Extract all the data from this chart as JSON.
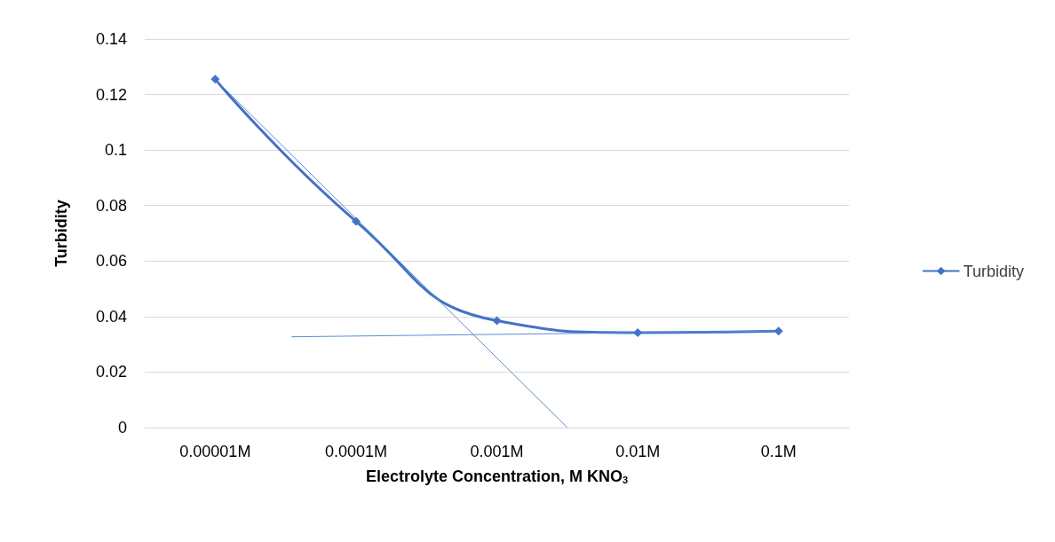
{
  "chart_data": {
    "type": "line",
    "xlabel": "Electrolyte Concentration, M KNO$_{3}$",
    "ylabel": "Turbidity",
    "log": "x",
    "x": [
      1e-05,
      0.0001,
      0.001,
      0.01,
      0.1
    ],
    "xlim": [
      3.16e-06,
      0.316
    ],
    "xticks": [
      {
        "value": 1e-05,
        "label": "0.00001M"
      },
      {
        "value": 0.0001,
        "label": "0.0001M"
      },
      {
        "value": 0.001,
        "label": "0.001M"
      },
      {
        "value": 0.01,
        "label": "0.01M"
      },
      {
        "value": 0.1,
        "label": "0.1M"
      }
    ],
    "ylim": [
      0,
      0.14
    ],
    "yticks": [
      0,
      0.02,
      0.04,
      0.06,
      0.08,
      0.1,
      0.12,
      0.14
    ],
    "grid": "y",
    "legend": "right",
    "marker": "diamond",
    "line_style": "solid",
    "series": [
      {
        "name": "Turbidity",
        "color": "#4472c4",
        "values": [
          0.1255,
          0.0743,
          0.0385,
          0.0342,
          0.0348
        ]
      },
      {
        "type": "line",
        "color": "#5b8bd6",
        "marker": "none",
        "x": [
          1e-05,
          0.00316
        ],
        "values": [
          0.1255,
          0
        ]
      },
      {
        "type": "line",
        "color": "#5b8bd6",
        "marker": "none",
        "x": [
          3.5e-05,
          0.1
        ],
        "values": [
          0.0327,
          0.0348
        ]
      }
    ]
  }
}
